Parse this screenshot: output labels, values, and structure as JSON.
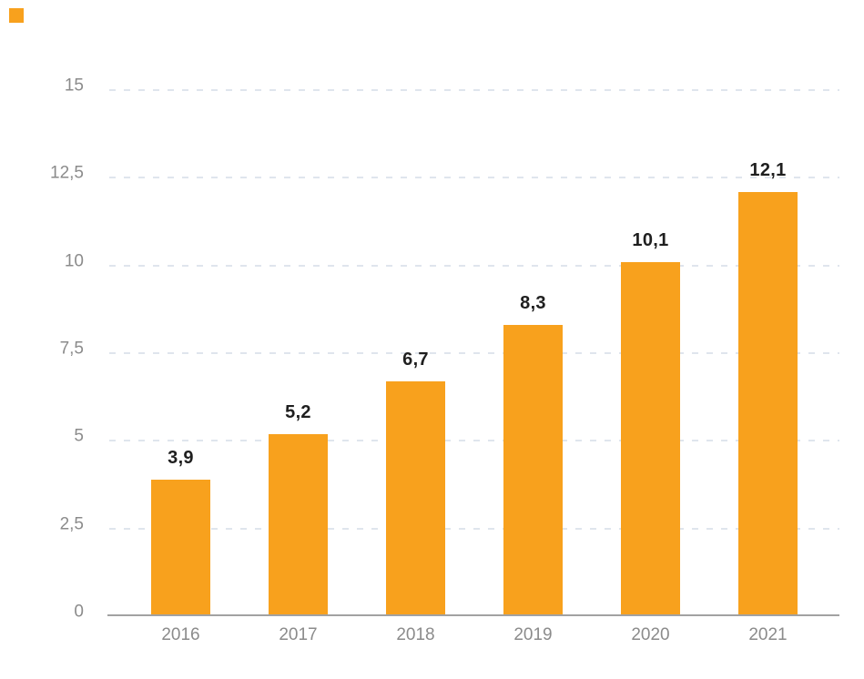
{
  "colors": {
    "bar": "#F8A11D",
    "gridline": "#DFE5ED",
    "axis_line": "#A2A2A2",
    "tick_text": "#8B8B8B",
    "value_text": "#1F1F1F",
    "background": "#FFFFFF"
  },
  "legend": {
    "marker_color": "#F8A11D",
    "position": "top-left"
  },
  "chart_data": {
    "type": "bar",
    "title": "",
    "xlabel": "",
    "ylabel": "",
    "categories": [
      "2016",
      "2017",
      "2018",
      "2019",
      "2020",
      "2021"
    ],
    "values": [
      3.9,
      5.2,
      6.7,
      8.3,
      10.1,
      12.1
    ],
    "value_labels": [
      "3,9",
      "5,2",
      "6,7",
      "8,3",
      "10,1",
      "12,1"
    ],
    "series_color": "#F8A11D",
    "ylim": [
      0,
      15
    ],
    "y_axis": {
      "min": 0,
      "max": 15,
      "ticks": [
        {
          "label": "15",
          "value": 15
        },
        {
          "label": "12,5",
          "value": 12.5
        },
        {
          "label": "10",
          "value": 10
        },
        {
          "label": "7,5",
          "value": 7.5
        },
        {
          "label": "5",
          "value": 5
        },
        {
          "label": "2,5",
          "value": 2.5
        },
        {
          "label": "0",
          "value": 0
        }
      ],
      "gridlines": "dashed-horizontal"
    },
    "legend_position": "top-left-swatch-only"
  }
}
